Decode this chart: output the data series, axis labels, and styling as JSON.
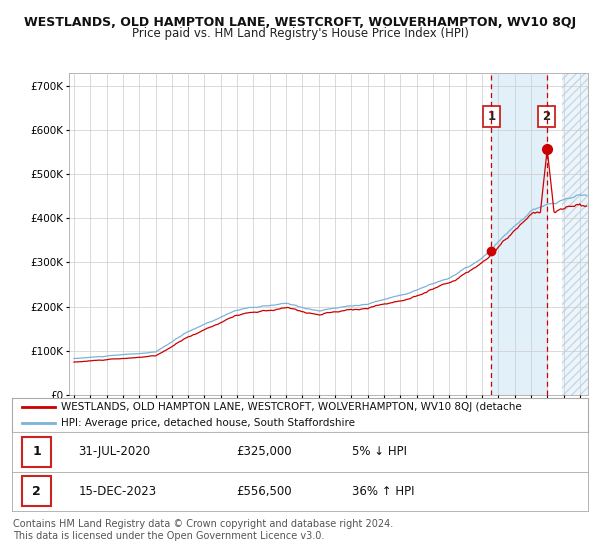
{
  "title": "WESTLANDS, OLD HAMPTON LANE, WESTCROFT, WOLVERHAMPTON, WV10 8QJ",
  "subtitle": "Price paid vs. HM Land Registry's House Price Index (HPI)",
  "ylabel_ticks": [
    "£0",
    "£100K",
    "£200K",
    "£300K",
    "£400K",
    "£500K",
    "£600K",
    "£700K"
  ],
  "ytick_vals": [
    0,
    100000,
    200000,
    300000,
    400000,
    500000,
    600000,
    700000
  ],
  "ylim": [
    0,
    730000
  ],
  "xlim_start": 1994.7,
  "xlim_end": 2026.5,
  "hpi_color": "#7ab4d8",
  "price_color": "#cc0000",
  "bg_color": "#ffffff",
  "grid_color": "#cccccc",
  "transaction1_date": 2020.58,
  "transaction1_price": 325000,
  "transaction1_label": "1",
  "transaction2_date": 2023.96,
  "transaction2_price": 556500,
  "transaction2_label": "2",
  "shade_start": 2020.58,
  "shade_end": 2023.96,
  "hatch_start": 2024.9,
  "legend_line1": "WESTLANDS, OLD HAMPTON LANE, WESTCROFT, WOLVERHAMPTON, WV10 8QJ (detache",
  "legend_line2": "HPI: Average price, detached house, South Staffordshire",
  "table_row1_num": "1",
  "table_row1_date": "31-JUL-2020",
  "table_row1_price": "£325,000",
  "table_row1_change": "5% ↓ HPI",
  "table_row2_num": "2",
  "table_row2_date": "15-DEC-2023",
  "table_row2_price": "£556,500",
  "table_row2_change": "36% ↑ HPI",
  "footer": "Contains HM Land Registry data © Crown copyright and database right 2024.\nThis data is licensed under the Open Government Licence v3.0.",
  "title_fontsize": 9.0,
  "subtitle_fontsize": 8.5,
  "tick_fontsize": 7.5,
  "legend_fontsize": 8,
  "table_fontsize": 8.5,
  "footer_fontsize": 7
}
